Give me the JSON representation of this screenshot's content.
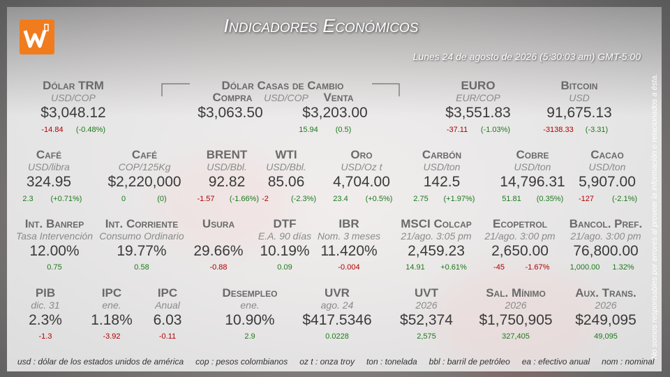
{
  "header": {
    "title": "Indicadores Económicos",
    "date": "Lunes 24 de agosto de 2026 (5:30:03 am) GMT-5:00"
  },
  "exchange": {
    "name": "Dólar Casas de Cambio",
    "buy_label": "Compra",
    "unit": "USD/COP",
    "sell_label": "Venta",
    "buy": "$3,063.50",
    "sell": "$3,203.00",
    "change": "15.94",
    "pct": "(0.5)"
  },
  "rows": [
    {
      "items": [
        {
          "name": "Dólar TRM",
          "unit": "USD/COP",
          "value": "$3,048.12",
          "change": "-14.84",
          "pct": "(-0.48%)"
        },
        {
          "name": "EURO",
          "unit": "EUR/COP",
          "value": "$3,551.83",
          "change": "-37.11",
          "pct": "(-1.03%)"
        },
        {
          "name": "Bitcoin",
          "unit": "USD",
          "value": "91,675.13",
          "change": "-3138.33",
          "pct": "(-3.31)"
        }
      ]
    },
    {
      "items": [
        {
          "name": "Café",
          "unit": "USD/libra",
          "value": "324.95",
          "change": "2.3",
          "pct": "(+0.71%)"
        },
        {
          "name": "Café",
          "unit": "COP/125Kg",
          "value": "$2,220,000",
          "change": "0",
          "pct": "(0)"
        },
        {
          "name": "BRENT",
          "unit": "USD/Bbl.",
          "value": "92.82",
          "change": "-1.57",
          "pct": "(-1.66%)"
        },
        {
          "name": "WTI",
          "unit": "USD/Bbl.",
          "value": "85.06",
          "change": "-2",
          "pct": "(-2.3%)"
        },
        {
          "name": "Oro",
          "unit": "USD/Oz t",
          "value": "4,704.00",
          "change": "23.4",
          "pct": "(+0.5%)"
        },
        {
          "name": "Carbón",
          "unit": "USD/ton",
          "value": "142.5",
          "change": "2.75",
          "pct": "(+1.97%)"
        },
        {
          "name": "Cobre",
          "unit": "USD/ton",
          "value": "14,796.31",
          "change": "51.81",
          "pct": "(0.35%)"
        },
        {
          "name": "Cacao",
          "unit": "USD/ton",
          "value": "5,907.00",
          "change": "-127",
          "pct": "(-2.1%)"
        }
      ]
    },
    {
      "items": [
        {
          "name": "Int. Banrep",
          "unit": "Tasa Intervención",
          "value": "12.00%",
          "change": "0.75"
        },
        {
          "name": "Int. Corriente",
          "unit": "Consumo Ordinario",
          "value": "19.77%",
          "change": "0.58"
        },
        {
          "name": "Usura",
          "value": "29.66%",
          "change": "-0.88"
        },
        {
          "name": "DTF",
          "unit": "E.A. 90 días",
          "value": "10.19%",
          "change": "0.09"
        },
        {
          "name": "IBR",
          "unit": "Nom. 3 meses",
          "value": "11.420%",
          "change": "-0.004"
        },
        {
          "name": "MSCI Colcap",
          "unit": "21/ago. 3:05 pm",
          "value": "2,459.23",
          "change": "14.91",
          "pct": "+0.61%"
        },
        {
          "name": "Ecopetrol",
          "unit": "21/ago. 3:00 pm",
          "value": "2,650.00",
          "change": "-45",
          "pct": "-1.67%"
        },
        {
          "name": "Bancol. Pref.",
          "unit": "21/ago. 3:00 pm",
          "value": "76,800.00",
          "change": "1,000.00",
          "pct": "1.32%"
        }
      ]
    },
    {
      "items": [
        {
          "name": "PIB",
          "unit": "dic. 31",
          "value": "2.3%",
          "change": "-1.3"
        },
        {
          "name": "IPC",
          "unit": "ene.",
          "value": "1.18%",
          "change": "-3.92"
        },
        {
          "name": "IPC",
          "unit": "Anual",
          "value": "6.03",
          "change": "-0.11"
        },
        {
          "name": "Desempleo",
          "unit": "ene.",
          "value": "10.90%",
          "change": "2.9"
        },
        {
          "name": "UVR",
          "unit": "ago. 24",
          "value": "$417.5346",
          "change": "0.0228"
        },
        {
          "name": "UVT",
          "unit": "2026",
          "value": "$52,374",
          "change": "2,575"
        },
        {
          "name": "Sal. Mínimo",
          "unit": "2026",
          "value": "$1,750,905",
          "change": "327,405"
        },
        {
          "name": "Aux. Trans.",
          "unit": "2026",
          "value": "$249,095",
          "change": "49,095"
        }
      ]
    }
  ],
  "footer": [
    "usd : dólar de los estados unidos de américa",
    "cop : pesos colombianos",
    "oz t : onza troy",
    "ton : tonelada",
    "bbl : barril de petróleo",
    "ea : efectivo anual",
    "nom : nominal"
  ],
  "disclaimer": "No somos responsables por errores al proveer la información o relacionados a ésta."
}
